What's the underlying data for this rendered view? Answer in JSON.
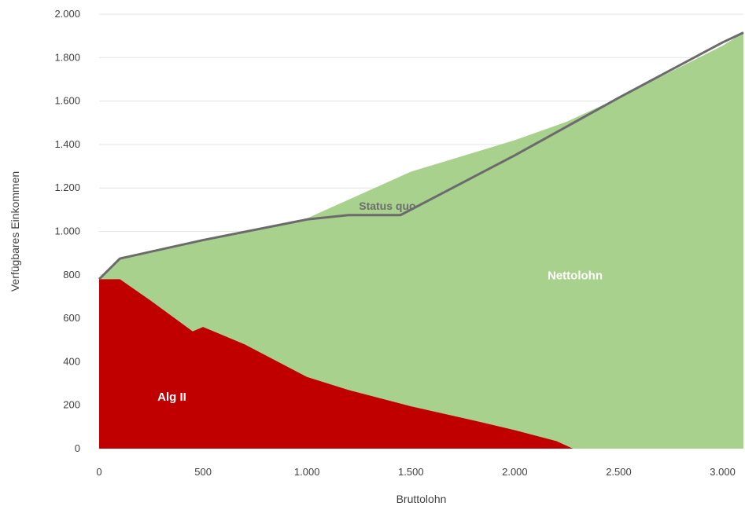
{
  "chart_data": {
    "type": "area",
    "xlabel": "Bruttolohn",
    "ylabel": "Verfügbares Einkommen",
    "xlim": [
      0,
      3100
    ],
    "ylim": [
      0,
      2000
    ],
    "x_ticks": [
      {
        "value": 0,
        "label": "0"
      },
      {
        "value": 500,
        "label": "500"
      },
      {
        "value": 1000,
        "label": "1.000"
      },
      {
        "value": 1500,
        "label": "1.500"
      },
      {
        "value": 2000,
        "label": "2.000"
      },
      {
        "value": 2500,
        "label": "2.500"
      },
      {
        "value": 3000,
        "label": "3.000"
      }
    ],
    "y_ticks": [
      {
        "value": 0,
        "label": "0"
      },
      {
        "value": 200,
        "label": "200"
      },
      {
        "value": 400,
        "label": "400"
      },
      {
        "value": 600,
        "label": "600"
      },
      {
        "value": 800,
        "label": "800"
      },
      {
        "value": 1000,
        "label": "1.000"
      },
      {
        "value": 1200,
        "label": "1.200"
      },
      {
        "value": 1400,
        "label": "1.400"
      },
      {
        "value": 1600,
        "label": "1.600"
      },
      {
        "value": 1800,
        "label": "1.800"
      },
      {
        "value": 2000,
        "label": "2.000"
      }
    ],
    "grid": true,
    "series": [
      {
        "name": "Alg II",
        "kind": "area",
        "color": "#c00000",
        "label_at": [
          350,
          220
        ],
        "points": [
          [
            0,
            780
          ],
          [
            100,
            780
          ],
          [
            250,
            680
          ],
          [
            450,
            540
          ],
          [
            500,
            560
          ],
          [
            700,
            480
          ],
          [
            1000,
            330
          ],
          [
            1200,
            270
          ],
          [
            1500,
            195
          ],
          [
            1800,
            130
          ],
          [
            2000,
            85
          ],
          [
            2200,
            35
          ],
          [
            2280,
            0
          ]
        ]
      },
      {
        "name": "Nettolohn",
        "kind": "area",
        "color": "#a9d18e",
        "label_at": [
          2290,
          780
        ],
        "points": [
          [
            0,
            780
          ],
          [
            100,
            875
          ],
          [
            500,
            960
          ],
          [
            1000,
            1060
          ],
          [
            1500,
            1275
          ],
          [
            2000,
            1420
          ],
          [
            2250,
            1505
          ],
          [
            2500,
            1615
          ],
          [
            3000,
            1855
          ],
          [
            3100,
            1915
          ]
        ]
      },
      {
        "name": "Status quo",
        "kind": "line",
        "color": "#6b6b6b",
        "label_at": [
          1250,
          1100
        ],
        "points": [
          [
            0,
            780
          ],
          [
            100,
            875
          ],
          [
            500,
            960
          ],
          [
            1000,
            1055
          ],
          [
            1200,
            1075
          ],
          [
            1450,
            1075
          ],
          [
            2000,
            1350
          ],
          [
            2500,
            1615
          ],
          [
            3000,
            1870
          ],
          [
            3100,
            1915
          ]
        ]
      }
    ]
  }
}
